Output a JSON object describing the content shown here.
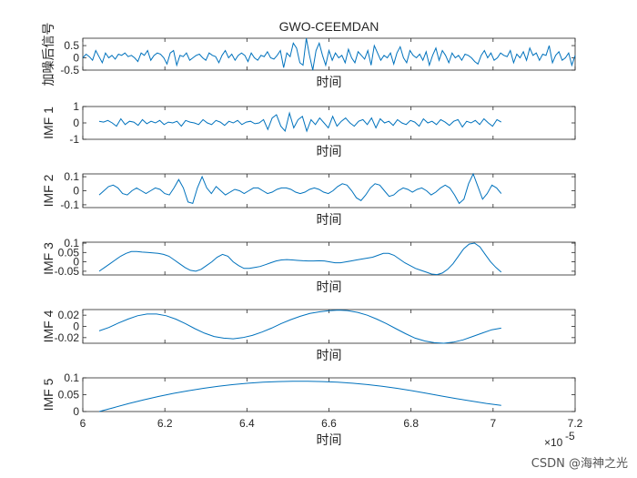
{
  "chart_data": [
    {
      "type": "line",
      "title": "GWO-CEEMDAN",
      "ylabel": "加噪后信号",
      "xlabel": "时间",
      "xlim": [
        6.0,
        7.2
      ],
      "ylim": [
        -0.5,
        0.8
      ],
      "yticks": [
        -0.5,
        0,
        0.5
      ],
      "ytick_labels": [
        "-0.5",
        "0",
        "0.5"
      ],
      "series": [
        {
          "values": [
            0.0,
            0.15,
            0.05,
            -0.1,
            0.3,
            0.05,
            -0.2,
            0.2,
            0.0,
            0.1,
            -0.05,
            0.15,
            0.1,
            0.2,
            0.05,
            0.1,
            0.0,
            -0.15,
            0.2,
            0.1,
            0.3,
            -0.1,
            0.1,
            0.2,
            0.15,
            0.0,
            -0.25,
            0.2,
            0.3,
            -0.3,
            0.1,
            0.05,
            0.2,
            -0.1,
            0.0,
            0.1,
            0.15,
            0.0,
            -0.1,
            0.2,
            0.1,
            0.05,
            -0.2,
            0.1,
            0.3,
            0.0,
            0.15,
            -0.1,
            0.1,
            0.2,
            0.1,
            -0.15,
            0.2,
            0.0,
            -0.1,
            0.1,
            0.05,
            0.25,
            0.0,
            -0.05,
            0.1,
            0.3,
            -0.4,
            0.2,
            0.05,
            0.6,
            0.4,
            -0.2,
            -0.3,
            0.8,
            0.1,
            -0.6,
            0.3,
            0.6,
            0.1,
            -0.3,
            0.3,
            -0.1,
            0.2,
            0.0,
            0.1,
            -0.2,
            0.35,
            0.0,
            -0.2,
            0.25,
            0.1,
            -0.05,
            0.3,
            -0.3,
            0.5,
            0.2,
            -0.1,
            0.1,
            0.0,
            0.2,
            -0.25,
            0.2,
            0.45,
            0.0,
            -0.2,
            0.3,
            0.1,
            0.0,
            0.15,
            -0.1,
            0.25,
            -0.3,
            0.1,
            0.4,
            -0.1,
            0.3,
            0.1,
            -0.2,
            0.2,
            0.0,
            0.1,
            -0.1,
            0.15,
            0.1,
            0.0,
            -0.15,
            -0.25,
            0.1,
            0.3,
            0.0,
            0.2,
            -0.1,
            0.0,
            0.2,
            0.1,
            0.05,
            0.3,
            -0.2,
            0.15,
            0.0,
            0.25,
            -0.1,
            0.4,
            0.1,
            0.2,
            -0.1,
            0.15,
            0.1,
            0.5,
            -0.2,
            0.1,
            0.25,
            -0.1,
            0.0,
            0.2,
            -0.3,
            0.1
          ]
        }
      ]
    },
    {
      "type": "line",
      "ylabel": "IMF 1",
      "xlabel": "时间",
      "xlim": [
        6.0,
        7.2
      ],
      "ylim": [
        -1,
        1
      ],
      "yticks": [
        -1,
        0,
        1
      ],
      "ytick_labels": [
        "-1",
        "0",
        "1"
      ],
      "series": [
        {
          "values": [
            0.1,
            0.05,
            0.15,
            0.0,
            -0.2,
            0.25,
            -0.1,
            0.1,
            0.05,
            -0.15,
            0.2,
            -0.05,
            0.1,
            0.0,
            0.15,
            -0.1,
            0.05,
            0.0,
            0.1,
            -0.2,
            0.15,
            0.05,
            0.0,
            -0.1,
            0.2,
            0.0,
            -0.1,
            0.15,
            0.05,
            -0.15,
            0.1,
            0.0,
            0.15,
            -0.1,
            0.05,
            0.1,
            -0.05,
            0.0,
            0.2,
            -0.4,
            0.3,
            0.5,
            -0.2,
            -0.5,
            0.6,
            -0.3,
            0.2,
            0.4,
            -0.5,
            0.2,
            -0.1,
            0.3,
            0.0,
            -0.3,
            0.4,
            -0.2,
            0.1,
            0.3,
            0.0,
            -0.2,
            0.1,
            0.2,
            -0.1,
            0.3,
            -0.3,
            0.25,
            0.0,
            0.1,
            -0.15,
            0.2,
            0.0,
            -0.1,
            0.15,
            0.05,
            -0.2,
            0.25,
            0.0,
            0.1,
            -0.1,
            0.2,
            0.05,
            -0.15,
            0.1,
            0.2,
            -0.25,
            0.1,
            0.0,
            0.15,
            -0.1,
            0.25,
            0.0,
            -0.2,
            0.2,
            0.05
          ]
        }
      ]
    },
    {
      "type": "line",
      "ylabel": "IMF 2",
      "xlabel": "时间",
      "xlim": [
        6.0,
        7.2
      ],
      "ylim": [
        -0.12,
        0.12
      ],
      "yticks": [
        -0.1,
        0,
        0.1
      ],
      "ytick_labels": [
        "-0.1",
        "0",
        "0.1"
      ],
      "series": [
        {
          "values": [
            -0.03,
            0.0,
            0.03,
            0.04,
            0.02,
            -0.02,
            -0.03,
            0.0,
            0.02,
            0.0,
            -0.02,
            0.0,
            0.02,
            0.01,
            -0.02,
            -0.03,
            0.02,
            0.08,
            0.02,
            -0.08,
            -0.09,
            0.02,
            0.1,
            0.02,
            -0.02,
            0.03,
            0.0,
            -0.03,
            -0.01,
            0.01,
            0.0,
            -0.02,
            0.0,
            0.02,
            0.02,
            0.0,
            -0.02,
            -0.01,
            0.01,
            0.02,
            0.02,
            0.01,
            -0.01,
            -0.02,
            -0.01,
            0.01,
            0.02,
            0.01,
            -0.01,
            -0.02,
            0.0,
            0.03,
            0.05,
            0.04,
            0.0,
            -0.05,
            -0.07,
            -0.03,
            0.02,
            0.05,
            0.04,
            0.0,
            -0.04,
            -0.03,
            0.0,
            0.02,
            0.01,
            -0.01,
            0.01,
            0.02,
            0.0,
            -0.03,
            -0.01,
            0.02,
            0.04,
            0.02,
            -0.03,
            -0.09,
            -0.06,
            0.05,
            0.12,
            0.03,
            -0.06,
            -0.02,
            0.04,
            0.02,
            -0.02
          ]
        }
      ]
    },
    {
      "type": "line",
      "ylabel": "IMF 3",
      "xlabel": "时间",
      "xlim": [
        6.0,
        7.2
      ],
      "ylim": [
        -0.07,
        0.105
      ],
      "yticks": [
        -0.05,
        0,
        0.05,
        0.1
      ],
      "ytick_labels": [
        "-0.05",
        "0",
        "0.05",
        "0.1"
      ],
      "series": [
        {
          "values": [
            -0.05,
            -0.03,
            -0.01,
            0.01,
            0.03,
            0.045,
            0.055,
            0.055,
            0.052,
            0.05,
            0.048,
            0.045,
            0.04,
            0.03,
            0.01,
            -0.01,
            -0.03,
            -0.045,
            -0.05,
            -0.04,
            -0.02,
            0.0,
            0.025,
            0.04,
            0.03,
            0.0,
            -0.02,
            -0.035,
            -0.035,
            -0.03,
            -0.025,
            -0.015,
            -0.005,
            0.005,
            0.01,
            0.012,
            0.01,
            0.008,
            0.006,
            0.005,
            0.005,
            0.006,
            0.005,
            0.0,
            -0.005,
            -0.005,
            0.0,
            0.005,
            0.01,
            0.015,
            0.02,
            0.025,
            0.035,
            0.045,
            0.045,
            0.035,
            0.015,
            -0.005,
            -0.02,
            -0.035,
            -0.045,
            -0.055,
            -0.065,
            -0.068,
            -0.06,
            -0.04,
            -0.01,
            0.03,
            0.07,
            0.095,
            0.1,
            0.08,
            0.04,
            0.0,
            -0.03,
            -0.055
          ]
        }
      ]
    },
    {
      "type": "line",
      "ylabel": "IMF 4",
      "xlabel": "时间",
      "xlim": [
        6.0,
        7.2
      ],
      "ylim": [
        -0.03,
        0.03
      ],
      "yticks": [
        -0.02,
        0,
        0.02
      ],
      "ytick_labels": [
        "-0.02",
        "0",
        "0.02"
      ],
      "series": [
        {
          "values": [
            -0.008,
            -0.002,
            0.006,
            0.013,
            0.019,
            0.022,
            0.022,
            0.019,
            0.013,
            0.005,
            -0.004,
            -0.012,
            -0.018,
            -0.021,
            -0.022,
            -0.02,
            -0.016,
            -0.01,
            -0.003,
            0.005,
            0.012,
            0.018,
            0.023,
            0.026,
            0.028,
            0.029,
            0.028,
            0.025,
            0.02,
            0.013,
            0.005,
            -0.004,
            -0.013,
            -0.021,
            -0.026,
            -0.029,
            -0.03,
            -0.028,
            -0.024,
            -0.018,
            -0.012,
            -0.006,
            -0.003
          ]
        }
      ]
    },
    {
      "type": "line",
      "ylabel": "IMF 5",
      "xlabel": "时间",
      "xlim": [
        6.0,
        7.2
      ],
      "ylim": [
        0,
        0.1
      ],
      "yticks": [
        0,
        0.05,
        0.1
      ],
      "ytick_labels": [
        "0",
        "0.05",
        "0.1"
      ],
      "xticks": [
        6.0,
        6.2,
        6.4,
        6.6,
        6.8,
        7.0,
        7.2
      ],
      "xtick_labels": [
        "6",
        "6.2",
        "6.4",
        "6.6",
        "6.8",
        "7",
        "7.2"
      ],
      "x_multiplier": "×10",
      "x_multiplier_exp": "-5",
      "series": [
        {
          "values": [
            0.0,
            0.012,
            0.024,
            0.035,
            0.045,
            0.054,
            0.062,
            0.069,
            0.075,
            0.08,
            0.084,
            0.087,
            0.089,
            0.09,
            0.09,
            0.089,
            0.087,
            0.084,
            0.08,
            0.075,
            0.069,
            0.062,
            0.054,
            0.046,
            0.038,
            0.031,
            0.024,
            0.018
          ]
        }
      ]
    }
  ],
  "line_color": "#0072BD",
  "signal_x_range": [
    6.0,
    7.2
  ],
  "imf_x_range": [
    6.04,
    7.02
  ],
  "watermark": "CSDN @海神之光"
}
